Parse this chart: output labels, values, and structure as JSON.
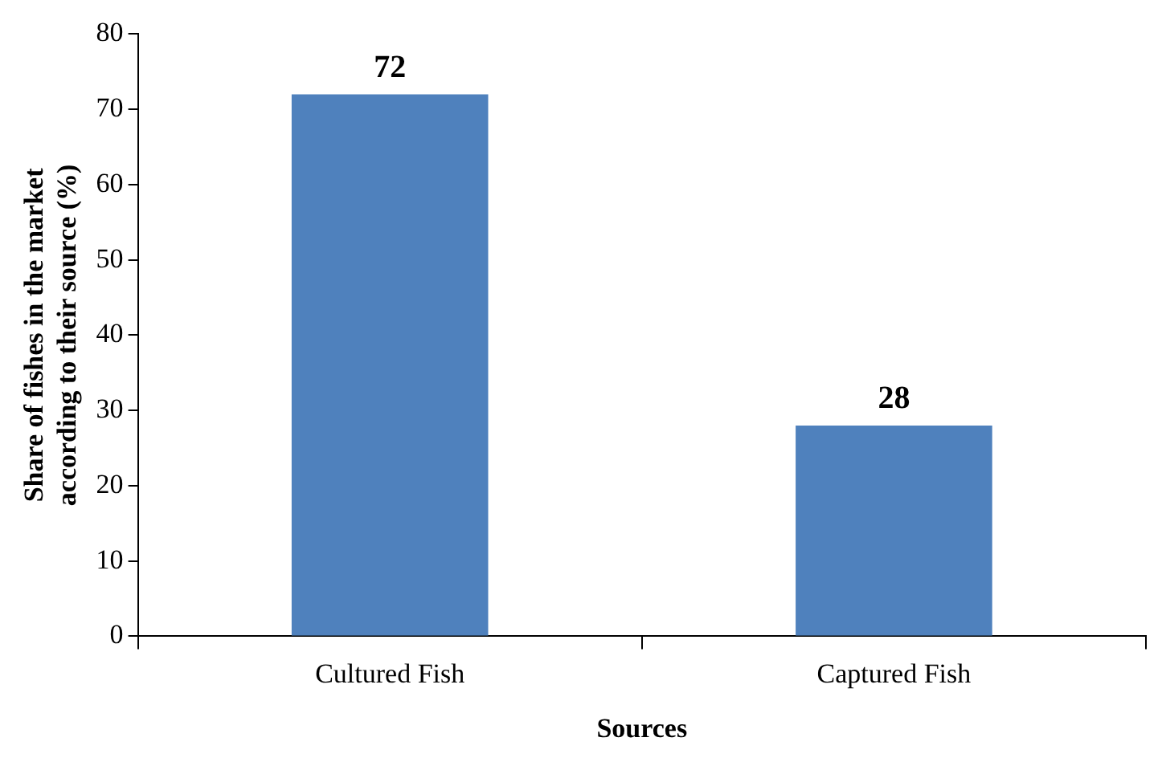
{
  "chart_data": {
    "type": "bar",
    "xlabel": "Sources",
    "ylabel": "Share of fishes in the market according to their source (%)",
    "categories": [
      "Cultured Fish",
      "Captured Fish"
    ],
    "values": [
      72,
      28
    ],
    "color": "#4f81bd",
    "ylim": [
      0,
      80
    ],
    "yticks": [
      0,
      10,
      20,
      30,
      40,
      50,
      60,
      70,
      80
    ],
    "grid": false,
    "legend": false,
    "data_labels": true
  }
}
